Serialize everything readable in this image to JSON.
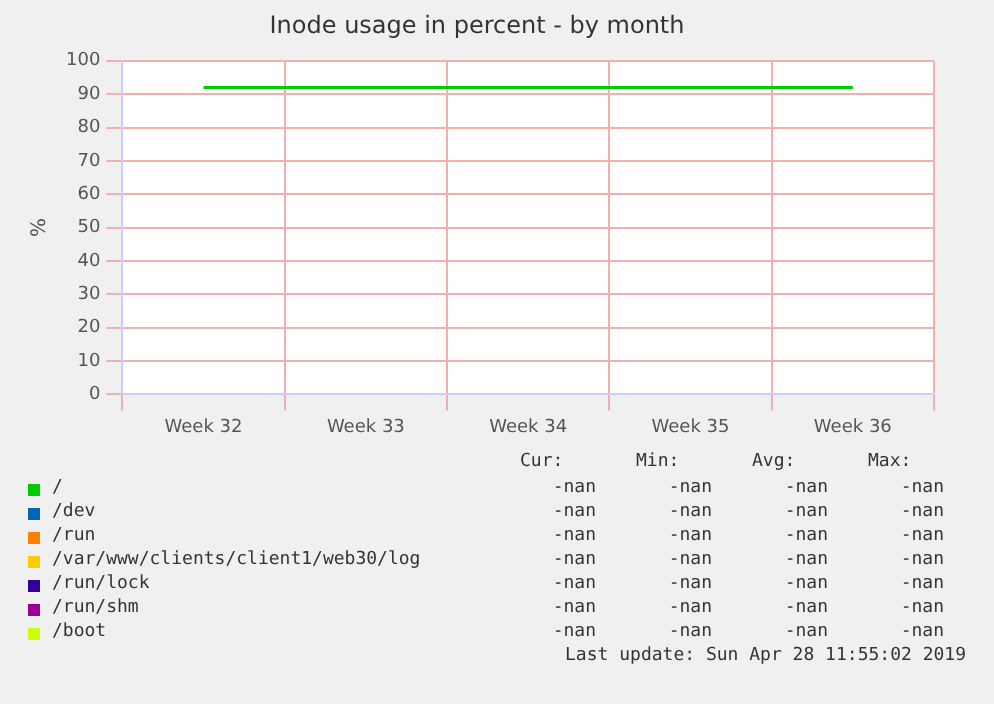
{
  "chart_data": {
    "type": "line",
    "title": "Inode usage in percent - by month",
    "ylabel": "%",
    "categories": [
      "Week 32",
      "Week 33",
      "Week 34",
      "Week 35",
      "Week 36"
    ],
    "ylim": [
      0,
      100
    ],
    "yticks": [
      0,
      10,
      20,
      30,
      40,
      50,
      60,
      70,
      80,
      90,
      100
    ],
    "grid": true,
    "legend": "bottom",
    "marker": "none",
    "line_style": "solid",
    "series": [
      {
        "name": "/",
        "color": "#00cc00",
        "values": [
          92,
          92,
          92,
          92,
          92
        ]
      },
      {
        "name": "/dev",
        "color": "#0066b3",
        "values": [
          null,
          null,
          null,
          null,
          null
        ]
      },
      {
        "name": "/run",
        "color": "#ff8000",
        "values": [
          null,
          null,
          null,
          null,
          null
        ]
      },
      {
        "name": "/var/www/clients/client1/web30/log",
        "color": "#ffcc00",
        "values": [
          null,
          null,
          null,
          null,
          null
        ]
      },
      {
        "name": "/run/lock",
        "color": "#330099",
        "values": [
          null,
          null,
          null,
          null,
          null
        ]
      },
      {
        "name": "/run/shm",
        "color": "#990099",
        "values": [
          null,
          null,
          null,
          null,
          null
        ]
      },
      {
        "name": "/boot",
        "color": "#ccff00",
        "values": [
          null,
          null,
          null,
          null,
          null
        ]
      }
    ],
    "annotations": [
      "Cur:",
      "Min:",
      "Avg:",
      "Max:",
      "-nan",
      "-nan",
      "-nan",
      "-nan",
      "-nan",
      "-nan",
      "-nan",
      "-nan",
      "-nan",
      "-nan",
      "-nan",
      "-nan",
      "-nan",
      "-nan",
      "-nan",
      "-nan",
      "-nan",
      "-nan",
      "-nan",
      "-nan",
      "-nan",
      "-nan",
      "-nan",
      "-nan",
      "-nan",
      "-nan",
      "-nan",
      "-nan",
      "Last update: Sun Apr 28 11:55:02 2019"
    ]
  }
}
